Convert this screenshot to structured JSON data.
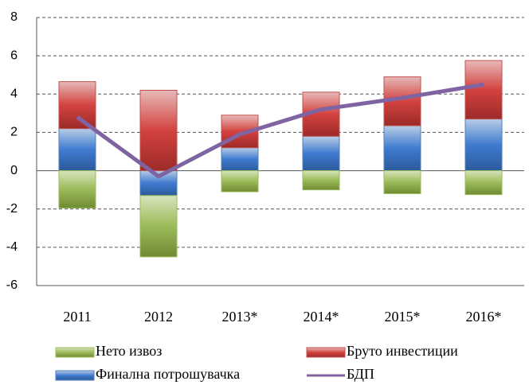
{
  "chart_data": {
    "type": "bar",
    "stacked": true,
    "categories": [
      "2011",
      "2012",
      "2013*",
      "2014*",
      "2015*",
      "2016*"
    ],
    "series": [
      {
        "name": "Нето извоз",
        "color": "#9bbb59",
        "values": [
          -1.95,
          -3.2,
          -1.1,
          -1.0,
          -1.2,
          -1.25
        ]
      },
      {
        "name": "Бруто инвестиции",
        "color": "#c0504d",
        "values": [
          2.45,
          4.2,
          1.7,
          2.3,
          2.55,
          3.05
        ]
      },
      {
        "name": "Финална потрошувачка",
        "color": "#4f81bd",
        "values": [
          2.2,
          -1.3,
          1.2,
          1.8,
          2.35,
          2.7
        ]
      },
      {
        "name": "БДП",
        "color": "#8064a2",
        "type": "line",
        "values": [
          2.8,
          -0.3,
          1.9,
          3.2,
          3.8,
          4.5
        ]
      }
    ],
    "ylim": [
      -6,
      8
    ],
    "yticks": [
      -6,
      -4,
      -2,
      0,
      2,
      4,
      6,
      8
    ],
    "grid": true,
    "legend": "bottom"
  }
}
